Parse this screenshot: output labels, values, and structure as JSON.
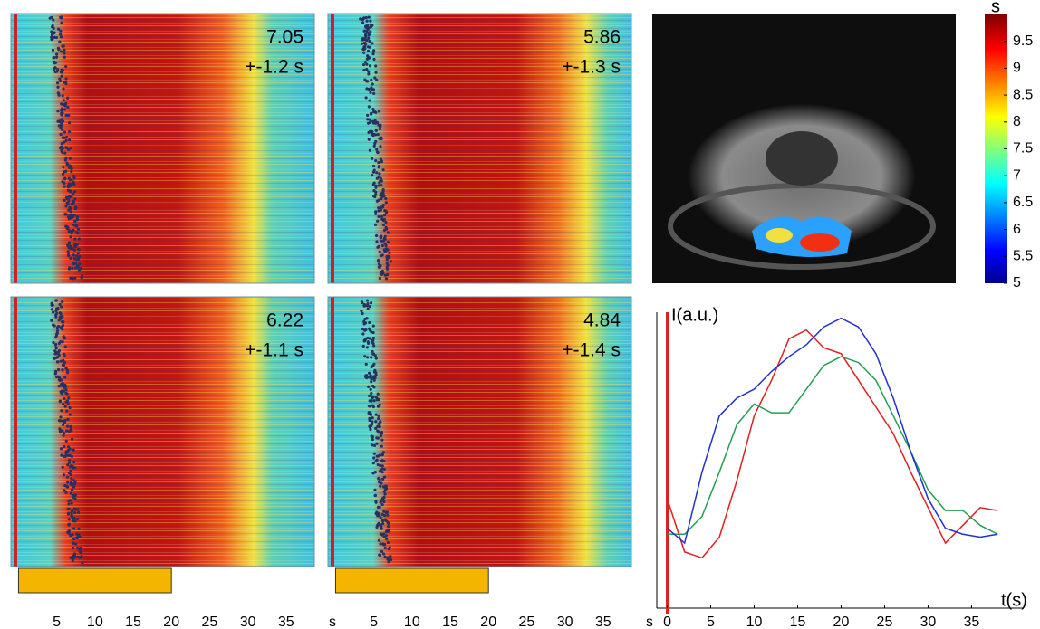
{
  "chart_data": [
    {
      "type": "heatmap",
      "panels": [
        {
          "annotations": [
            "7.05",
            "+-1.2 s"
          ]
        },
        {
          "annotations": [
            "5.86",
            "+-1.3 s"
          ]
        },
        {
          "annotations": [
            "6.22",
            "+-1.1 s"
          ]
        },
        {
          "annotations": [
            "4.84",
            "+-1.4 s"
          ]
        }
      ],
      "xlim": [
        -1,
        38.7
      ],
      "xticks": [
        5,
        10,
        15,
        20,
        25,
        30,
        35
      ],
      "x_unit": "s",
      "stimulus": [
        0,
        20
      ],
      "stimulus_color": "#f5b400"
    },
    {
      "type": "colorbar",
      "label": "s",
      "ylim": [
        5,
        10
      ],
      "yticks": [
        5,
        5.5,
        6,
        6.5,
        7,
        7.5,
        8,
        8.5,
        9,
        9.5
      ]
    },
    {
      "type": "line",
      "ylabel": "I(a.u.)",
      "xlabel": "t(s)",
      "onset": 0,
      "onset_color": "#e02020",
      "xlim": [
        -1.2,
        41
      ],
      "ylim": [
        0,
        1
      ],
      "xticks": [
        0,
        5,
        10,
        15,
        20,
        25,
        30,
        35
      ],
      "x": [
        0,
        2,
        4,
        6,
        8,
        10,
        12,
        14,
        16,
        18,
        20,
        22,
        24,
        26,
        28,
        30,
        32,
        34,
        36,
        38
      ],
      "series": [
        {
          "color": "#e02020",
          "values": [
            0.37,
            0.19,
            0.17,
            0.24,
            0.43,
            0.65,
            0.77,
            0.91,
            0.94,
            0.88,
            0.86,
            0.77,
            0.68,
            0.59,
            0.46,
            0.34,
            0.22,
            0.28,
            0.34,
            0.33
          ]
        },
        {
          "color": "#20a050",
          "values": [
            0.25,
            0.25,
            0.31,
            0.46,
            0.62,
            0.69,
            0.66,
            0.66,
            0.74,
            0.82,
            0.85,
            0.83,
            0.77,
            0.65,
            0.53,
            0.4,
            0.33,
            0.33,
            0.28,
            0.25
          ]
        },
        {
          "color": "#2030d0",
          "values": [
            0.27,
            0.22,
            0.46,
            0.65,
            0.71,
            0.74,
            0.8,
            0.85,
            0.89,
            0.95,
            0.98,
            0.95,
            0.86,
            0.71,
            0.53,
            0.37,
            0.27,
            0.25,
            0.24,
            0.25
          ]
        }
      ]
    }
  ]
}
